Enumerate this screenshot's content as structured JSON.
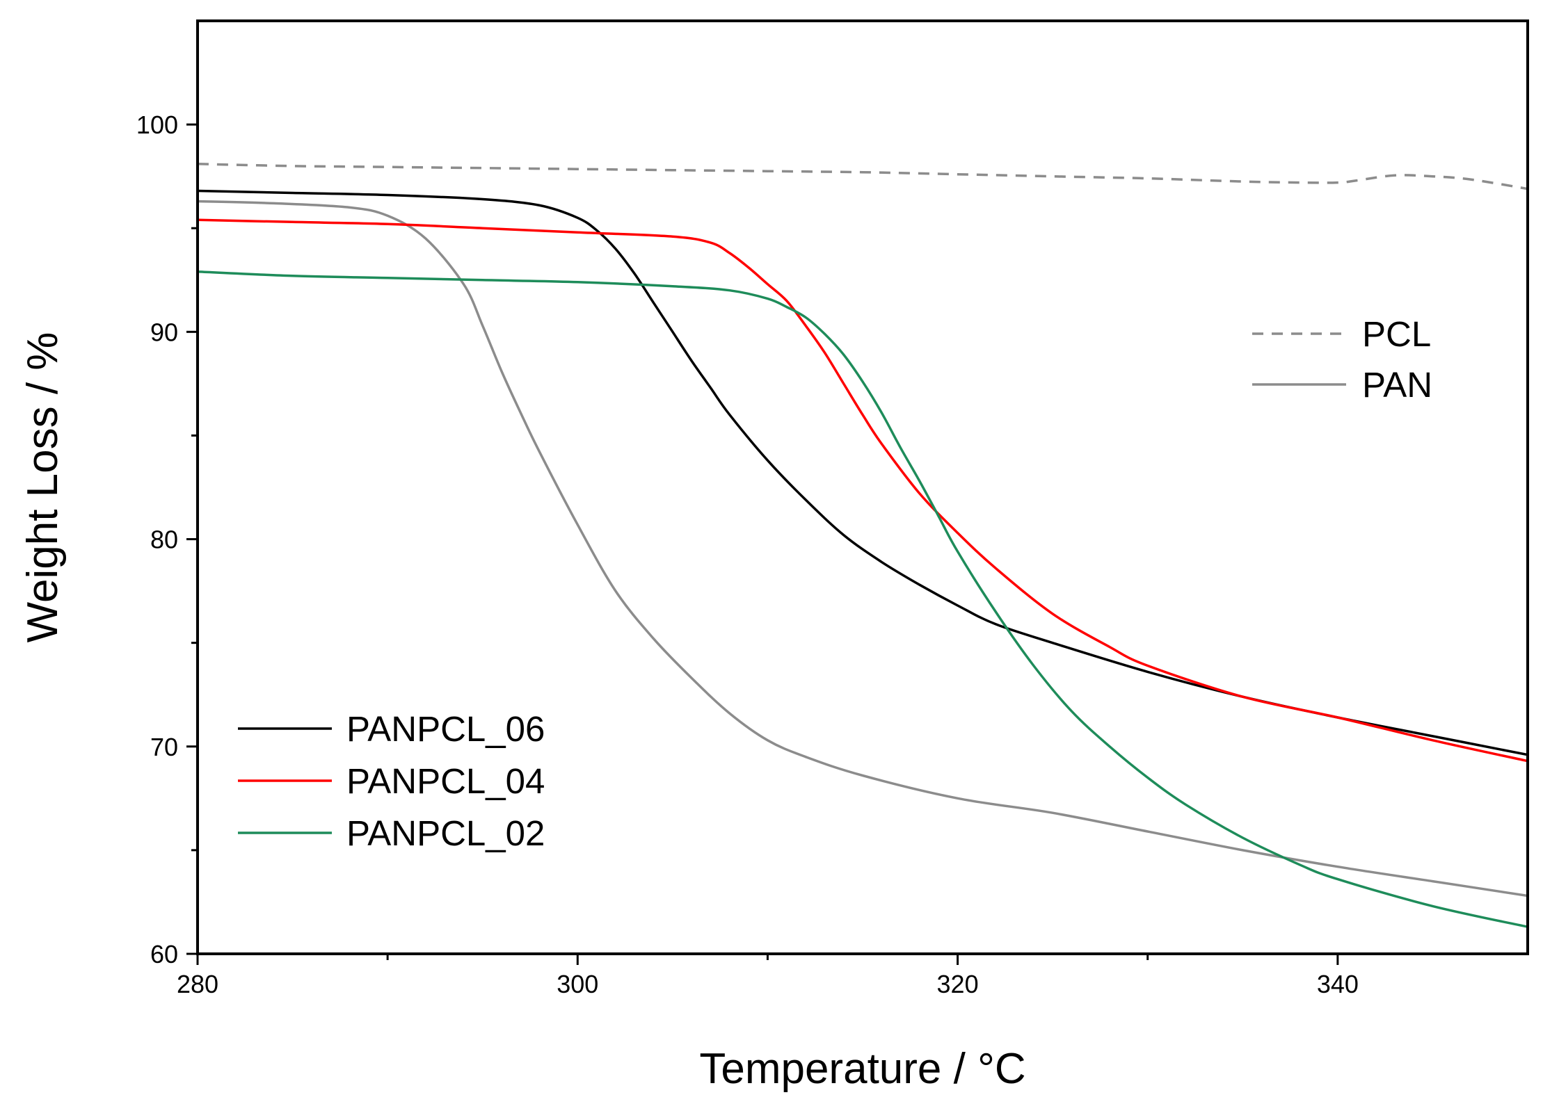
{
  "chart_data": {
    "type": "line",
    "title": "",
    "xlabel": "Temperature / °C",
    "ylabel": "Weight Loss / %",
    "xlim": [
      280,
      350
    ],
    "ylim": [
      60,
      105
    ],
    "x_major_ticks": [
      280,
      300,
      320,
      340
    ],
    "x_minor_ticks": [
      290,
      310,
      330
    ],
    "y_major_ticks": [
      60,
      70,
      80,
      90,
      100
    ],
    "y_minor_ticks": [
      65,
      75,
      85,
      95
    ],
    "grid": false,
    "series": [
      {
        "name": "PCL",
        "color": "#8c8c8c",
        "style": "dashed",
        "legend_group": "top-right",
        "points": [
          [
            280,
            98.1
          ],
          [
            285,
            98.0
          ],
          [
            290,
            97.95
          ],
          [
            295,
            97.9
          ],
          [
            300,
            97.85
          ],
          [
            305,
            97.8
          ],
          [
            310,
            97.75
          ],
          [
            315,
            97.7
          ],
          [
            320,
            97.6
          ],
          [
            325,
            97.5
          ],
          [
            330,
            97.4
          ],
          [
            335,
            97.25
          ],
          [
            338,
            97.2
          ],
          [
            340,
            97.2
          ],
          [
            341,
            97.3
          ],
          [
            343,
            97.55
          ],
          [
            345,
            97.5
          ],
          [
            347,
            97.35
          ],
          [
            350,
            96.9
          ]
        ]
      },
      {
        "name": "PAN",
        "color": "#8c8c8c",
        "style": "solid",
        "legend_group": "top-right",
        "points": [
          [
            280,
            96.3
          ],
          [
            284,
            96.2
          ],
          [
            288,
            96.0
          ],
          [
            290,
            95.6
          ],
          [
            292,
            94.5
          ],
          [
            294,
            92.3
          ],
          [
            295,
            90.3
          ],
          [
            296,
            88.1
          ],
          [
            297,
            86.1
          ],
          [
            298,
            84.2
          ],
          [
            300,
            80.7
          ],
          [
            302,
            77.5
          ],
          [
            304,
            75.2
          ],
          [
            306,
            73.3
          ],
          [
            308,
            71.6
          ],
          [
            310,
            70.3
          ],
          [
            312,
            69.5
          ],
          [
            315,
            68.6
          ],
          [
            320,
            67.5
          ],
          [
            325,
            66.8
          ],
          [
            330,
            65.9
          ],
          [
            335,
            65.0
          ],
          [
            340,
            64.2
          ],
          [
            345,
            63.5
          ],
          [
            350,
            62.8
          ]
        ]
      },
      {
        "name": "PANPCL_06",
        "color": "#000000",
        "style": "solid",
        "legend_group": "bottom-left",
        "points": [
          [
            280,
            96.8
          ],
          [
            285,
            96.7
          ],
          [
            290,
            96.6
          ],
          [
            295,
            96.4
          ],
          [
            298,
            96.1
          ],
          [
            300,
            95.5
          ],
          [
            301,
            94.9
          ],
          [
            302,
            94.0
          ],
          [
            303,
            92.8
          ],
          [
            304,
            91.4
          ],
          [
            305,
            90.0
          ],
          [
            306,
            88.6
          ],
          [
            307,
            87.3
          ],
          [
            308,
            86.0
          ],
          [
            310,
            83.8
          ],
          [
            312,
            81.9
          ],
          [
            314,
            80.2
          ],
          [
            316,
            78.9
          ],
          [
            318,
            77.8
          ],
          [
            320,
            76.8
          ],
          [
            322,
            75.9
          ],
          [
            325,
            75.0
          ],
          [
            330,
            73.6
          ],
          [
            335,
            72.4
          ],
          [
            340,
            71.4
          ],
          [
            345,
            70.5
          ],
          [
            350,
            69.6
          ]
        ]
      },
      {
        "name": "PANPCL_04",
        "color": "#ff0000",
        "style": "solid",
        "legend_group": "bottom-left",
        "points": [
          [
            280,
            95.4
          ],
          [
            285,
            95.3
          ],
          [
            290,
            95.2
          ],
          [
            295,
            95.0
          ],
          [
            300,
            94.8
          ],
          [
            305,
            94.6
          ],
          [
            307,
            94.3
          ],
          [
            308,
            93.8
          ],
          [
            309,
            93.1
          ],
          [
            310,
            92.3
          ],
          [
            311,
            91.5
          ],
          [
            312,
            90.3
          ],
          [
            313,
            89.0
          ],
          [
            314,
            87.5
          ],
          [
            315,
            86.0
          ],
          [
            316,
            84.6
          ],
          [
            318,
            82.2
          ],
          [
            320,
            80.3
          ],
          [
            322,
            78.6
          ],
          [
            325,
            76.4
          ],
          [
            328,
            74.8
          ],
          [
            330,
            73.9
          ],
          [
            335,
            72.4
          ],
          [
            340,
            71.4
          ],
          [
            345,
            70.3
          ],
          [
            350,
            69.3
          ]
        ]
      },
      {
        "name": "PANPCL_02",
        "color": "#1e8c5a",
        "style": "solid",
        "legend_group": "bottom-left",
        "points": [
          [
            280,
            92.9
          ],
          [
            285,
            92.7
          ],
          [
            290,
            92.6
          ],
          [
            295,
            92.5
          ],
          [
            300,
            92.4
          ],
          [
            305,
            92.2
          ],
          [
            308,
            92.0
          ],
          [
            310,
            91.6
          ],
          [
            311,
            91.2
          ],
          [
            312,
            90.7
          ],
          [
            313,
            89.9
          ],
          [
            314,
            88.9
          ],
          [
            315,
            87.6
          ],
          [
            316,
            86.1
          ],
          [
            317,
            84.4
          ],
          [
            318,
            82.8
          ],
          [
            319,
            81.1
          ],
          [
            320,
            79.4
          ],
          [
            322,
            76.5
          ],
          [
            324,
            73.9
          ],
          [
            326,
            71.7
          ],
          [
            328,
            70.0
          ],
          [
            330,
            68.5
          ],
          [
            332,
            67.2
          ],
          [
            335,
            65.6
          ],
          [
            338,
            64.3
          ],
          [
            340,
            63.6
          ],
          [
            345,
            62.3
          ],
          [
            350,
            61.3
          ]
        ]
      }
    ]
  }
}
